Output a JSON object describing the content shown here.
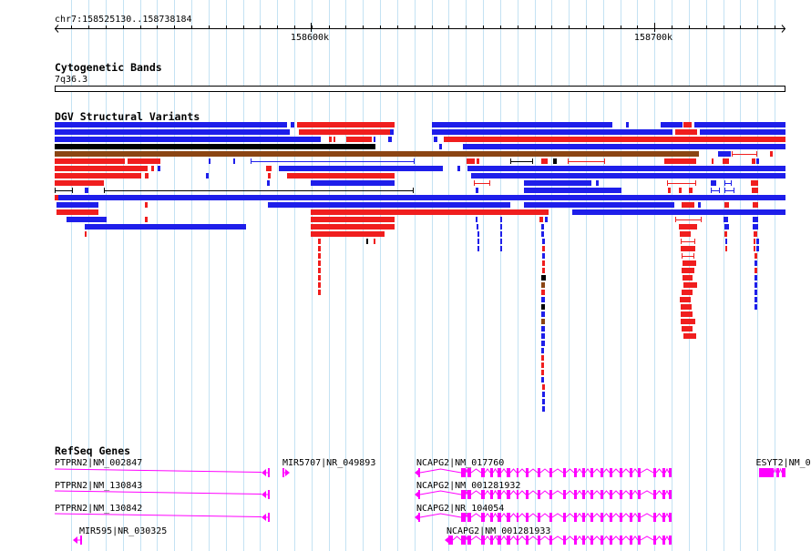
{
  "ruler": {
    "region": "chr7:158525130..158738184",
    "tick_labels": [
      "158600k",
      "158700k"
    ]
  },
  "tracks": {
    "cytoband": {
      "title": "Cytogenetic Bands",
      "band_label": "7q36.3"
    },
    "dgv": {
      "title": "DGV Structural Variants"
    },
    "refseq": {
      "title": "RefSeq Genes",
      "genes": [
        {
          "label": "PTPRN2|NM_002847"
        },
        {
          "label": "MIR5707|NR_049893"
        },
        {
          "label": "NCAPG2|NM_017760"
        },
        {
          "label": "ESYT2|NM_0"
        },
        {
          "label": "PTPRN2|NM_130843"
        },
        {
          "label": "NCAPG2|NM_001281932"
        },
        {
          "label": "PTPRN2|NM_130842"
        },
        {
          "label": "NCAPG2|NR_104054"
        },
        {
          "label": "MIR595|NR_030325"
        },
        {
          "label": "NCAPG2|NM_001281933"
        }
      ]
    }
  },
  "colors": {
    "grid_blue": "#c4e2f3",
    "variant_blue": "#1e1eea",
    "variant_red": "#f01e1e",
    "variant_brown": "#8b4513",
    "variant_black": "#000000",
    "gene_magenta": "#ff00ff",
    "ruler": "#000000"
  }
}
